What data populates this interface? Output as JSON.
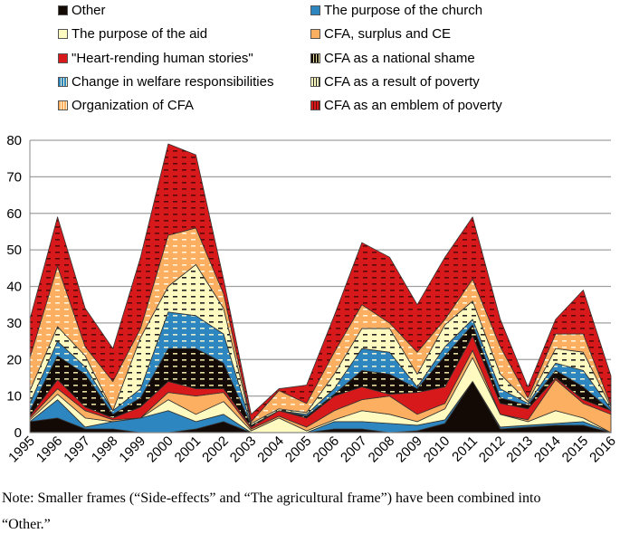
{
  "chart_data": {
    "type": "area",
    "stacked": true,
    "title": "",
    "xlabel": "",
    "ylabel": "",
    "x": [
      1995,
      1996,
      1997,
      1998,
      1999,
      2000,
      2001,
      2002,
      2003,
      2004,
      2005,
      2006,
      2007,
      2008,
      2009,
      2010,
      2011,
      2012,
      2013,
      2014,
      2015,
      2016
    ],
    "xlim": [
      1995,
      2016
    ],
    "ylim": [
      0,
      80
    ],
    "yticks": [
      0,
      10,
      20,
      30,
      40,
      50,
      60,
      70,
      80
    ],
    "grid": "horizontal",
    "legend_placement": "top",
    "series": [
      {
        "name": "Other",
        "color": "#140a05",
        "pattern": "solid",
        "values": [
          3,
          4,
          1,
          1,
          0,
          0,
          1,
          3,
          0,
          0,
          0,
          1,
          1,
          0,
          0.5,
          2.5,
          14,
          1,
          1.5,
          2,
          2,
          0
        ]
      },
      {
        "name": "The purpose of the church",
        "color": "#2e86c1",
        "pattern": "solid",
        "values": [
          0,
          5,
          0.5,
          2,
          4,
          6,
          2,
          2,
          0,
          0,
          0,
          2,
          2,
          2.5,
          1.5,
          1,
          0,
          0.5,
          0.5,
          0.5,
          1,
          0
        ]
      },
      {
        "name": "The purpose of the aid",
        "color": "#fffbc0",
        "pattern": "solid",
        "values": [
          0.5,
          1.5,
          2.5,
          0,
          0,
          3,
          2,
          3.5,
          0.5,
          4,
          0.5,
          0.5,
          3,
          2.5,
          1,
          3,
          6.5,
          3.5,
          1,
          3.5,
          1,
          0
        ]
      },
      {
        "name": "CFA, surplus and CE",
        "color": "#fcaf60",
        "pattern": "solid",
        "values": [
          0.5,
          1.5,
          2,
          0.5,
          0,
          2,
          5,
          2.5,
          0.5,
          0.5,
          1,
          2.5,
          3,
          5,
          2,
          1.5,
          2,
          0,
          0.5,
          8.5,
          4,
          5
        ]
      },
      {
        "name": "\"Heart-rending human stories\"",
        "color": "#d7191c",
        "pattern": "solid",
        "values": [
          0.5,
          2.5,
          1,
          0.5,
          3,
          3,
          2,
          1,
          0.5,
          1.5,
          2.5,
          4,
          3.5,
          0.5,
          6,
          4.5,
          4,
          3,
          3,
          0.5,
          1,
          1
        ]
      },
      {
        "name": "CFA as a national shame",
        "color": "#140a05",
        "pattern": "dashed",
        "values": [
          1.5,
          6.5,
          9,
          1,
          2.5,
          9,
          11,
          7,
          0.5,
          0,
          0.5,
          0.5,
          4.5,
          5.5,
          1,
          8.5,
          3,
          1.5,
          1,
          2,
          3.5,
          0
        ]
      },
      {
        "name": "Change in welfare responsibilities",
        "color": "#2e86c1",
        "pattern": "dashed",
        "values": [
          2,
          4,
          2,
          1,
          2.5,
          10,
          9,
          8,
          0,
          0,
          0.5,
          1.5,
          6,
          6,
          0.5,
          2.5,
          1.5,
          2.5,
          0.5,
          2,
          4.5,
          0.5
        ]
      },
      {
        "name": "CFA as a result of poverty",
        "color": "#fffbc0",
        "pattern": "dashed",
        "values": [
          3.5,
          4,
          3,
          0,
          14,
          7,
          14,
          7,
          0.5,
          0.5,
          0.5,
          4,
          5.5,
          6.5,
          3.5,
          6,
          5,
          4,
          0.5,
          4,
          5,
          0.5
        ]
      },
      {
        "name": "Organization of CFA",
        "color": "#fcaf60",
        "pattern": "dashed",
        "values": [
          9,
          16.5,
          2.5,
          8,
          2.5,
          14,
          10,
          4,
          0.5,
          5,
          2.5,
          6,
          6.5,
          1.5,
          6,
          1.5,
          6,
          7.5,
          1,
          4,
          5,
          0.5
        ]
      },
      {
        "name": "CFA as an emblem of poverty",
        "color": "#d7191c",
        "pattern": "dashed",
        "values": [
          10.5,
          13.5,
          10.5,
          9,
          19.5,
          25,
          20,
          4,
          2,
          0.5,
          5,
          10,
          17,
          18,
          13,
          17,
          17,
          7.5,
          3,
          4,
          12,
          8
        ]
      }
    ]
  },
  "legend_order": [
    0,
    1,
    2,
    3,
    4,
    5,
    6,
    7,
    8,
    9
  ],
  "note": {
    "line1": "Note: Smaller frames (“Side-effects” and “The agricultural frame”) have been combined into",
    "line2": "“Other.”"
  }
}
